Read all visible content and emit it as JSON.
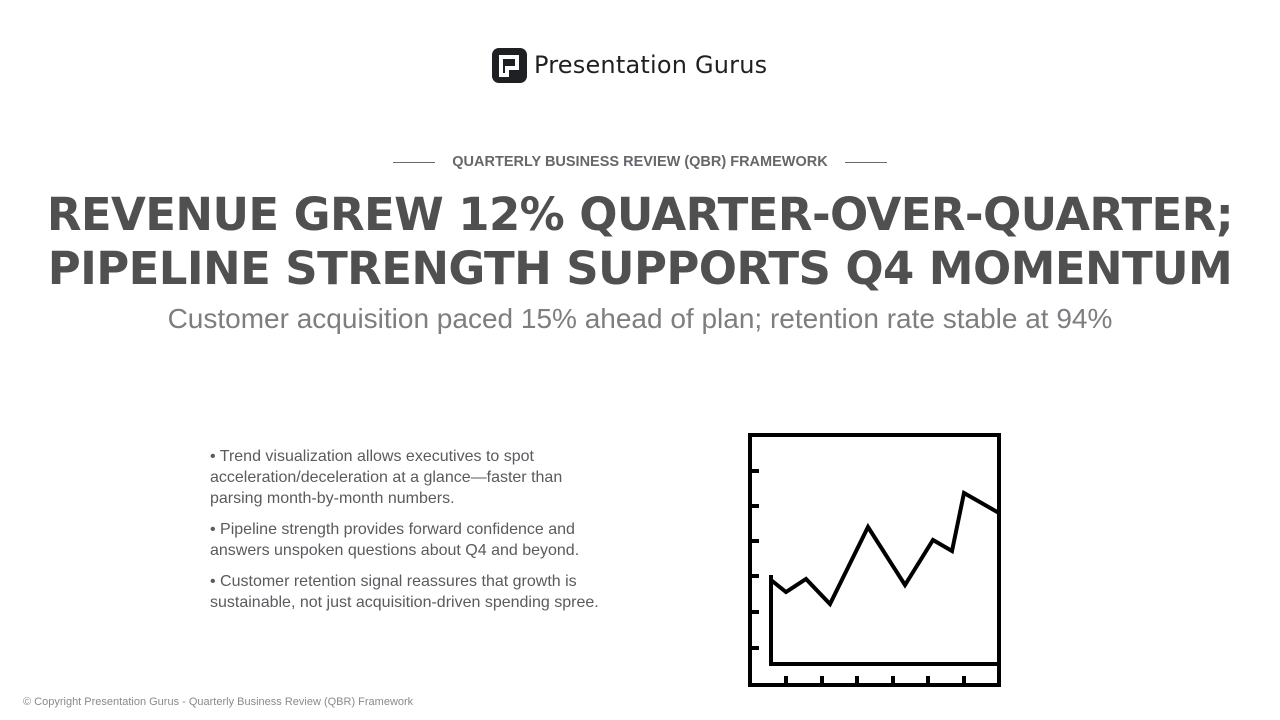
{
  "brand": {
    "name": "Presentation Gurus",
    "logo_icon": "presentation-gurus-logo-icon",
    "logo_color": "#1f2023"
  },
  "slide": {
    "eyebrow": "QUARTERLY BUSINESS REVIEW (QBR) FRAMEWORK",
    "headline_line1": "REVENUE GREW 12% QUARTER-OVER-QUARTER;",
    "headline_line2": "PIPELINE STRENGTH SUPPORTS Q4 MOMENTUM",
    "subtitle": "Customer acquisition paced 15% ahead of plan; retention rate stable at 94%",
    "bullets": [
      "• Trend visualization allows executives to spot acceleration/deceleration at a glance—faster than parsing month-by-month numbers.",
      "• Pipeline strength provides forward confidence and answers unspoken questions about Q4 and beyond.",
      "• Customer retention signal reassures that growth is sustainable, not just acquisition-driven spending spree."
    ],
    "illustration_icon": "line-chart-icon"
  },
  "footer": {
    "copyright": "© Copyright Presentation Gurus - Quarterly Business Review (QBR) Framework"
  },
  "colors": {
    "headline": "#505050",
    "subtitle": "#7e7e82",
    "body_text": "#5a5a5f",
    "eyebrow": "#66666b"
  }
}
